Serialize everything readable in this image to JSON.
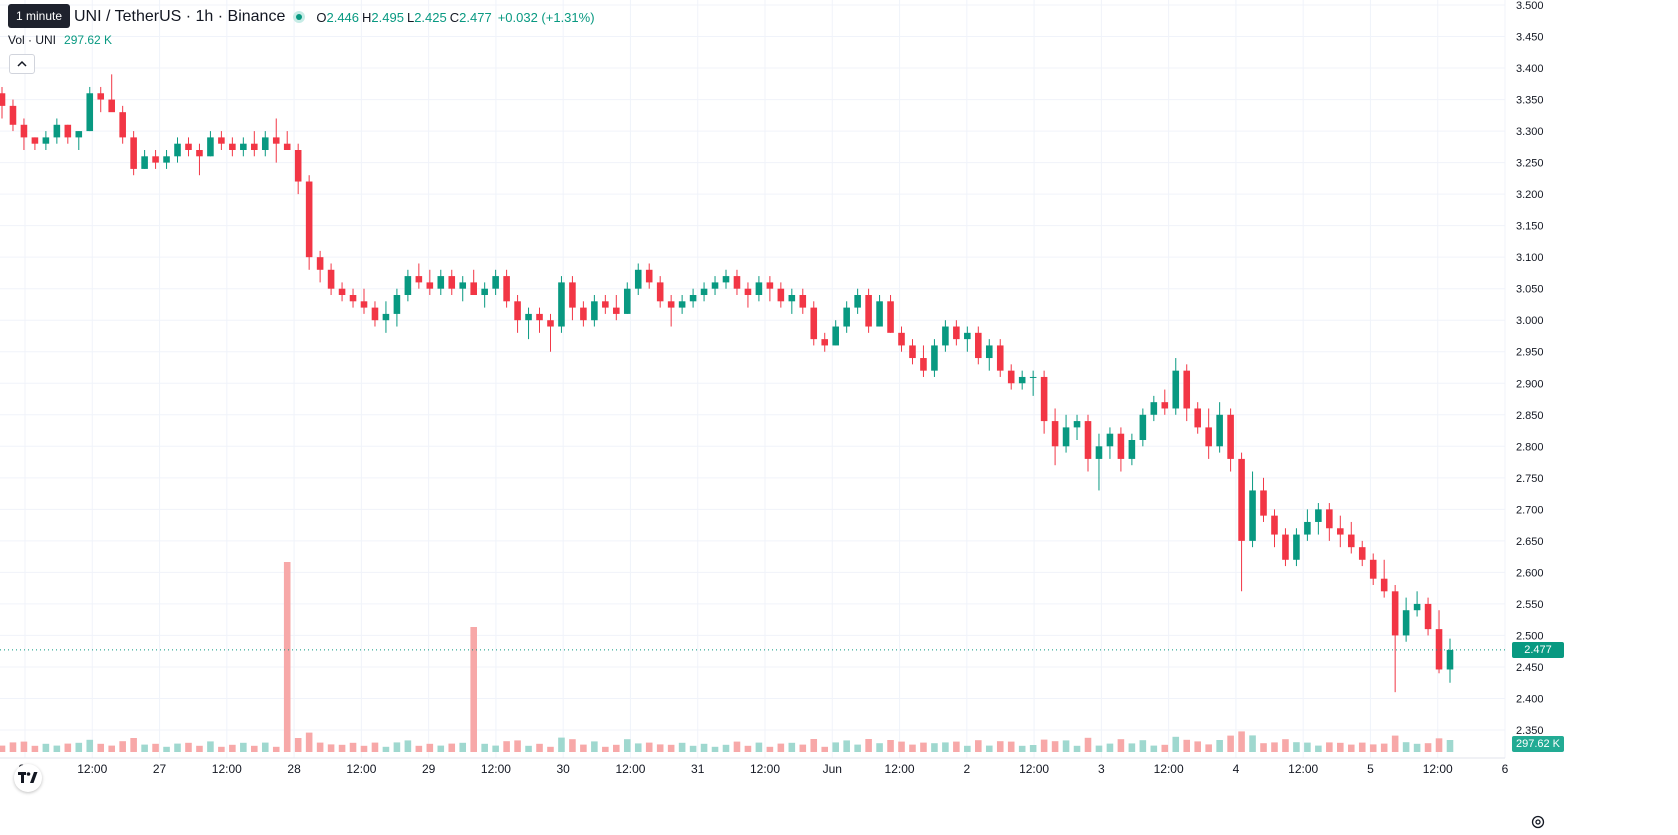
{
  "symbol": {
    "title": "UNI / TetherUS · 1h · Binance"
  },
  "tooltip": "1 minute",
  "ohlc": {
    "o_label": "O",
    "o": "2.446",
    "h_label": "H",
    "h": "2.495",
    "l_label": "L",
    "l": "2.425",
    "c_label": "C",
    "c": "2.477",
    "change": "+0.032 (+1.31%)"
  },
  "volume_legend": {
    "label": "Vol · UNI",
    "value": "297.62 K"
  },
  "price_scale": {
    "current_price": "2.477",
    "current_volume": "297.62 K"
  },
  "colors": {
    "up": "#089981",
    "down": "#f23645",
    "up_vol": "#9fd8cf",
    "down_vol": "#f7a8a8",
    "grid": "#f0f3fa",
    "axis_text": "#131722"
  },
  "icons": {
    "collapse": "chevron-up-icon",
    "logo": "tradingview-logo-icon",
    "settings": "gear-icon"
  },
  "chart_data": {
    "type": "candlestick",
    "timeframe": "1h",
    "x_tick_labels": [
      "26",
      "12:00",
      "27",
      "12:00",
      "28",
      "12:00",
      "29",
      "12:00",
      "30",
      "12:00",
      "31",
      "12:00",
      "Jun",
      "12:00",
      "2",
      "12:00",
      "3",
      "12:00",
      "4",
      "12:00",
      "5",
      "12:00",
      "6"
    ],
    "y_tick_labels": [
      "3.500",
      "3.450",
      "3.400",
      "3.350",
      "3.300",
      "3.250",
      "3.200",
      "3.150",
      "3.100",
      "3.050",
      "3.000",
      "2.950",
      "2.900",
      "2.850",
      "2.800",
      "2.750",
      "2.700",
      "2.650",
      "2.600",
      "2.550",
      "2.500",
      "2.450",
      "2.400",
      "2.350"
    ],
    "ylim": [
      2.33,
      3.5
    ],
    "candles_approx": [
      [
        3.36,
        3.37,
        3.32,
        3.34
      ],
      [
        3.34,
        3.35,
        3.3,
        3.31
      ],
      [
        3.31,
        3.32,
        3.27,
        3.29
      ],
      [
        3.29,
        3.29,
        3.27,
        3.28
      ],
      [
        3.28,
        3.3,
        3.27,
        3.29
      ],
      [
        3.29,
        3.32,
        3.28,
        3.31
      ],
      [
        3.31,
        3.31,
        3.28,
        3.29
      ],
      [
        3.29,
        3.3,
        3.27,
        3.3
      ],
      [
        3.3,
        3.37,
        3.3,
        3.36
      ],
      [
        3.36,
        3.37,
        3.33,
        3.35
      ],
      [
        3.35,
        3.39,
        3.34,
        3.33
      ],
      [
        3.33,
        3.34,
        3.28,
        3.29
      ],
      [
        3.29,
        3.3,
        3.23,
        3.24
      ],
      [
        3.24,
        3.27,
        3.24,
        3.26
      ],
      [
        3.26,
        3.27,
        3.24,
        3.25
      ],
      [
        3.25,
        3.27,
        3.24,
        3.26
      ],
      [
        3.26,
        3.29,
        3.25,
        3.28
      ],
      [
        3.28,
        3.29,
        3.26,
        3.27
      ],
      [
        3.27,
        3.28,
        3.23,
        3.26
      ],
      [
        3.26,
        3.3,
        3.26,
        3.29
      ],
      [
        3.29,
        3.3,
        3.27,
        3.28
      ],
      [
        3.28,
        3.29,
        3.26,
        3.27
      ],
      [
        3.27,
        3.29,
        3.26,
        3.28
      ],
      [
        3.28,
        3.3,
        3.26,
        3.27
      ],
      [
        3.27,
        3.3,
        3.26,
        3.29
      ],
      [
        3.29,
        3.32,
        3.25,
        3.28
      ],
      [
        3.28,
        3.3,
        3.27,
        3.27
      ],
      [
        3.27,
        3.28,
        3.2,
        3.22
      ],
      [
        3.22,
        3.23,
        3.08,
        3.1
      ],
      [
        3.1,
        3.11,
        3.06,
        3.08
      ],
      [
        3.08,
        3.09,
        3.04,
        3.05
      ],
      [
        3.05,
        3.06,
        3.03,
        3.04
      ],
      [
        3.04,
        3.05,
        3.02,
        3.03
      ],
      [
        3.03,
        3.05,
        3.01,
        3.02
      ],
      [
        3.02,
        3.03,
        2.99,
        3.0
      ],
      [
        3.0,
        3.03,
        2.98,
        3.01
      ],
      [
        3.01,
        3.05,
        2.99,
        3.04
      ],
      [
        3.04,
        3.08,
        3.03,
        3.07
      ],
      [
        3.07,
        3.09,
        3.05,
        3.06
      ],
      [
        3.06,
        3.08,
        3.04,
        3.05
      ],
      [
        3.05,
        3.08,
        3.04,
        3.07
      ],
      [
        3.07,
        3.08,
        3.04,
        3.05
      ],
      [
        3.05,
        3.07,
        3.03,
        3.06
      ],
      [
        3.06,
        3.08,
        3.04,
        3.04
      ],
      [
        3.04,
        3.06,
        3.02,
        3.05
      ],
      [
        3.05,
        3.08,
        3.04,
        3.07
      ],
      [
        3.07,
        3.08,
        3.02,
        3.03
      ],
      [
        3.03,
        3.04,
        2.98,
        3.0
      ],
      [
        3.0,
        3.02,
        2.97,
        3.01
      ],
      [
        3.01,
        3.02,
        2.98,
        3.0
      ],
      [
        3.0,
        3.01,
        2.95,
        2.99
      ],
      [
        2.99,
        3.07,
        2.98,
        3.06
      ],
      [
        3.06,
        3.07,
        3.0,
        3.02
      ],
      [
        3.02,
        3.03,
        2.99,
        3.0
      ],
      [
        3.0,
        3.04,
        2.99,
        3.03
      ],
      [
        3.03,
        3.04,
        3.01,
        3.02
      ],
      [
        3.02,
        3.04,
        3.0,
        3.01
      ],
      [
        3.01,
        3.06,
        3.01,
        3.05
      ],
      [
        3.05,
        3.09,
        3.04,
        3.08
      ],
      [
        3.08,
        3.09,
        3.05,
        3.06
      ],
      [
        3.06,
        3.07,
        3.02,
        3.03
      ],
      [
        3.03,
        3.04,
        2.99,
        3.02
      ],
      [
        3.02,
        3.04,
        3.01,
        3.03
      ],
      [
        3.03,
        3.05,
        3.02,
        3.04
      ],
      [
        3.04,
        3.06,
        3.03,
        3.05
      ],
      [
        3.05,
        3.07,
        3.04,
        3.06
      ],
      [
        3.06,
        3.08,
        3.05,
        3.07
      ],
      [
        3.07,
        3.08,
        3.04,
        3.05
      ],
      [
        3.05,
        3.06,
        3.02,
        3.04
      ],
      [
        3.04,
        3.07,
        3.03,
        3.06
      ],
      [
        3.06,
        3.07,
        3.03,
        3.05
      ],
      [
        3.05,
        3.06,
        3.02,
        3.03
      ],
      [
        3.03,
        3.05,
        3.01,
        3.04
      ],
      [
        3.04,
        3.05,
        3.01,
        3.02
      ],
      [
        3.02,
        3.03,
        2.96,
        2.97
      ],
      [
        2.97,
        2.98,
        2.95,
        2.96
      ],
      [
        2.96,
        3.0,
        2.96,
        2.99
      ],
      [
        2.99,
        3.03,
        2.98,
        3.02
      ],
      [
        3.02,
        3.05,
        3.01,
        3.04
      ],
      [
        3.04,
        3.05,
        2.98,
        2.99
      ],
      [
        2.99,
        3.04,
        2.99,
        3.03
      ],
      [
        3.03,
        3.04,
        2.98,
        2.98
      ],
      [
        2.98,
        2.99,
        2.95,
        2.96
      ],
      [
        2.96,
        2.97,
        2.93,
        2.94
      ],
      [
        2.94,
        2.96,
        2.91,
        2.92
      ],
      [
        2.92,
        2.97,
        2.91,
        2.96
      ],
      [
        2.96,
        3.0,
        2.95,
        2.99
      ],
      [
        2.99,
        3.0,
        2.96,
        2.97
      ],
      [
        2.97,
        2.99,
        2.95,
        2.98
      ],
      [
        2.98,
        2.99,
        2.93,
        2.94
      ],
      [
        2.94,
        2.97,
        2.92,
        2.96
      ],
      [
        2.96,
        2.97,
        2.91,
        2.92
      ],
      [
        2.92,
        2.93,
        2.89,
        2.9
      ],
      [
        2.9,
        2.92,
        2.89,
        2.91
      ],
      [
        2.91,
        2.92,
        2.88,
        2.91
      ],
      [
        2.91,
        2.92,
        2.82,
        2.84
      ],
      [
        2.84,
        2.86,
        2.77,
        2.8
      ],
      [
        2.8,
        2.85,
        2.79,
        2.83
      ],
      [
        2.83,
        2.85,
        2.81,
        2.84
      ],
      [
        2.84,
        2.85,
        2.76,
        2.78
      ],
      [
        2.78,
        2.82,
        2.73,
        2.8
      ],
      [
        2.8,
        2.83,
        2.78,
        2.82
      ],
      [
        2.82,
        2.83,
        2.76,
        2.78
      ],
      [
        2.78,
        2.82,
        2.77,
        2.81
      ],
      [
        2.81,
        2.86,
        2.8,
        2.85
      ],
      [
        2.85,
        2.88,
        2.84,
        2.87
      ],
      [
        2.87,
        2.89,
        2.85,
        2.86
      ],
      [
        2.86,
        2.94,
        2.85,
        2.92
      ],
      [
        2.92,
        2.93,
        2.84,
        2.86
      ],
      [
        2.86,
        2.87,
        2.82,
        2.83
      ],
      [
        2.83,
        2.86,
        2.78,
        2.8
      ],
      [
        2.8,
        2.87,
        2.79,
        2.85
      ],
      [
        2.85,
        2.86,
        2.76,
        2.78
      ],
      [
        2.78,
        2.79,
        2.57,
        2.65
      ],
      [
        2.65,
        2.76,
        2.64,
        2.73
      ],
      [
        2.73,
        2.75,
        2.68,
        2.69
      ],
      [
        2.69,
        2.7,
        2.64,
        2.66
      ],
      [
        2.66,
        2.67,
        2.61,
        2.62
      ],
      [
        2.62,
        2.67,
        2.61,
        2.66
      ],
      [
        2.66,
        2.7,
        2.65,
        2.68
      ],
      [
        2.68,
        2.71,
        2.66,
        2.7
      ],
      [
        2.7,
        2.71,
        2.65,
        2.67
      ],
      [
        2.67,
        2.69,
        2.64,
        2.66
      ],
      [
        2.66,
        2.68,
        2.63,
        2.64
      ],
      [
        2.64,
        2.65,
        2.61,
        2.62
      ],
      [
        2.62,
        2.63,
        2.58,
        2.59
      ],
      [
        2.59,
        2.62,
        2.56,
        2.57
      ],
      [
        2.57,
        2.58,
        2.41,
        2.5
      ],
      [
        2.5,
        2.56,
        2.49,
        2.54
      ],
      [
        2.54,
        2.57,
        2.53,
        2.55
      ],
      [
        2.55,
        2.56,
        2.5,
        2.51
      ],
      [
        2.51,
        2.54,
        2.44,
        2.446
      ],
      [
        2.446,
        2.495,
        2.425,
        2.477
      ]
    ],
    "volume_spikes": [
      {
        "x_label": "28",
        "relative": 1.0
      },
      {
        "x_label": "29 (12:00)",
        "relative": 0.65
      }
    ]
  }
}
